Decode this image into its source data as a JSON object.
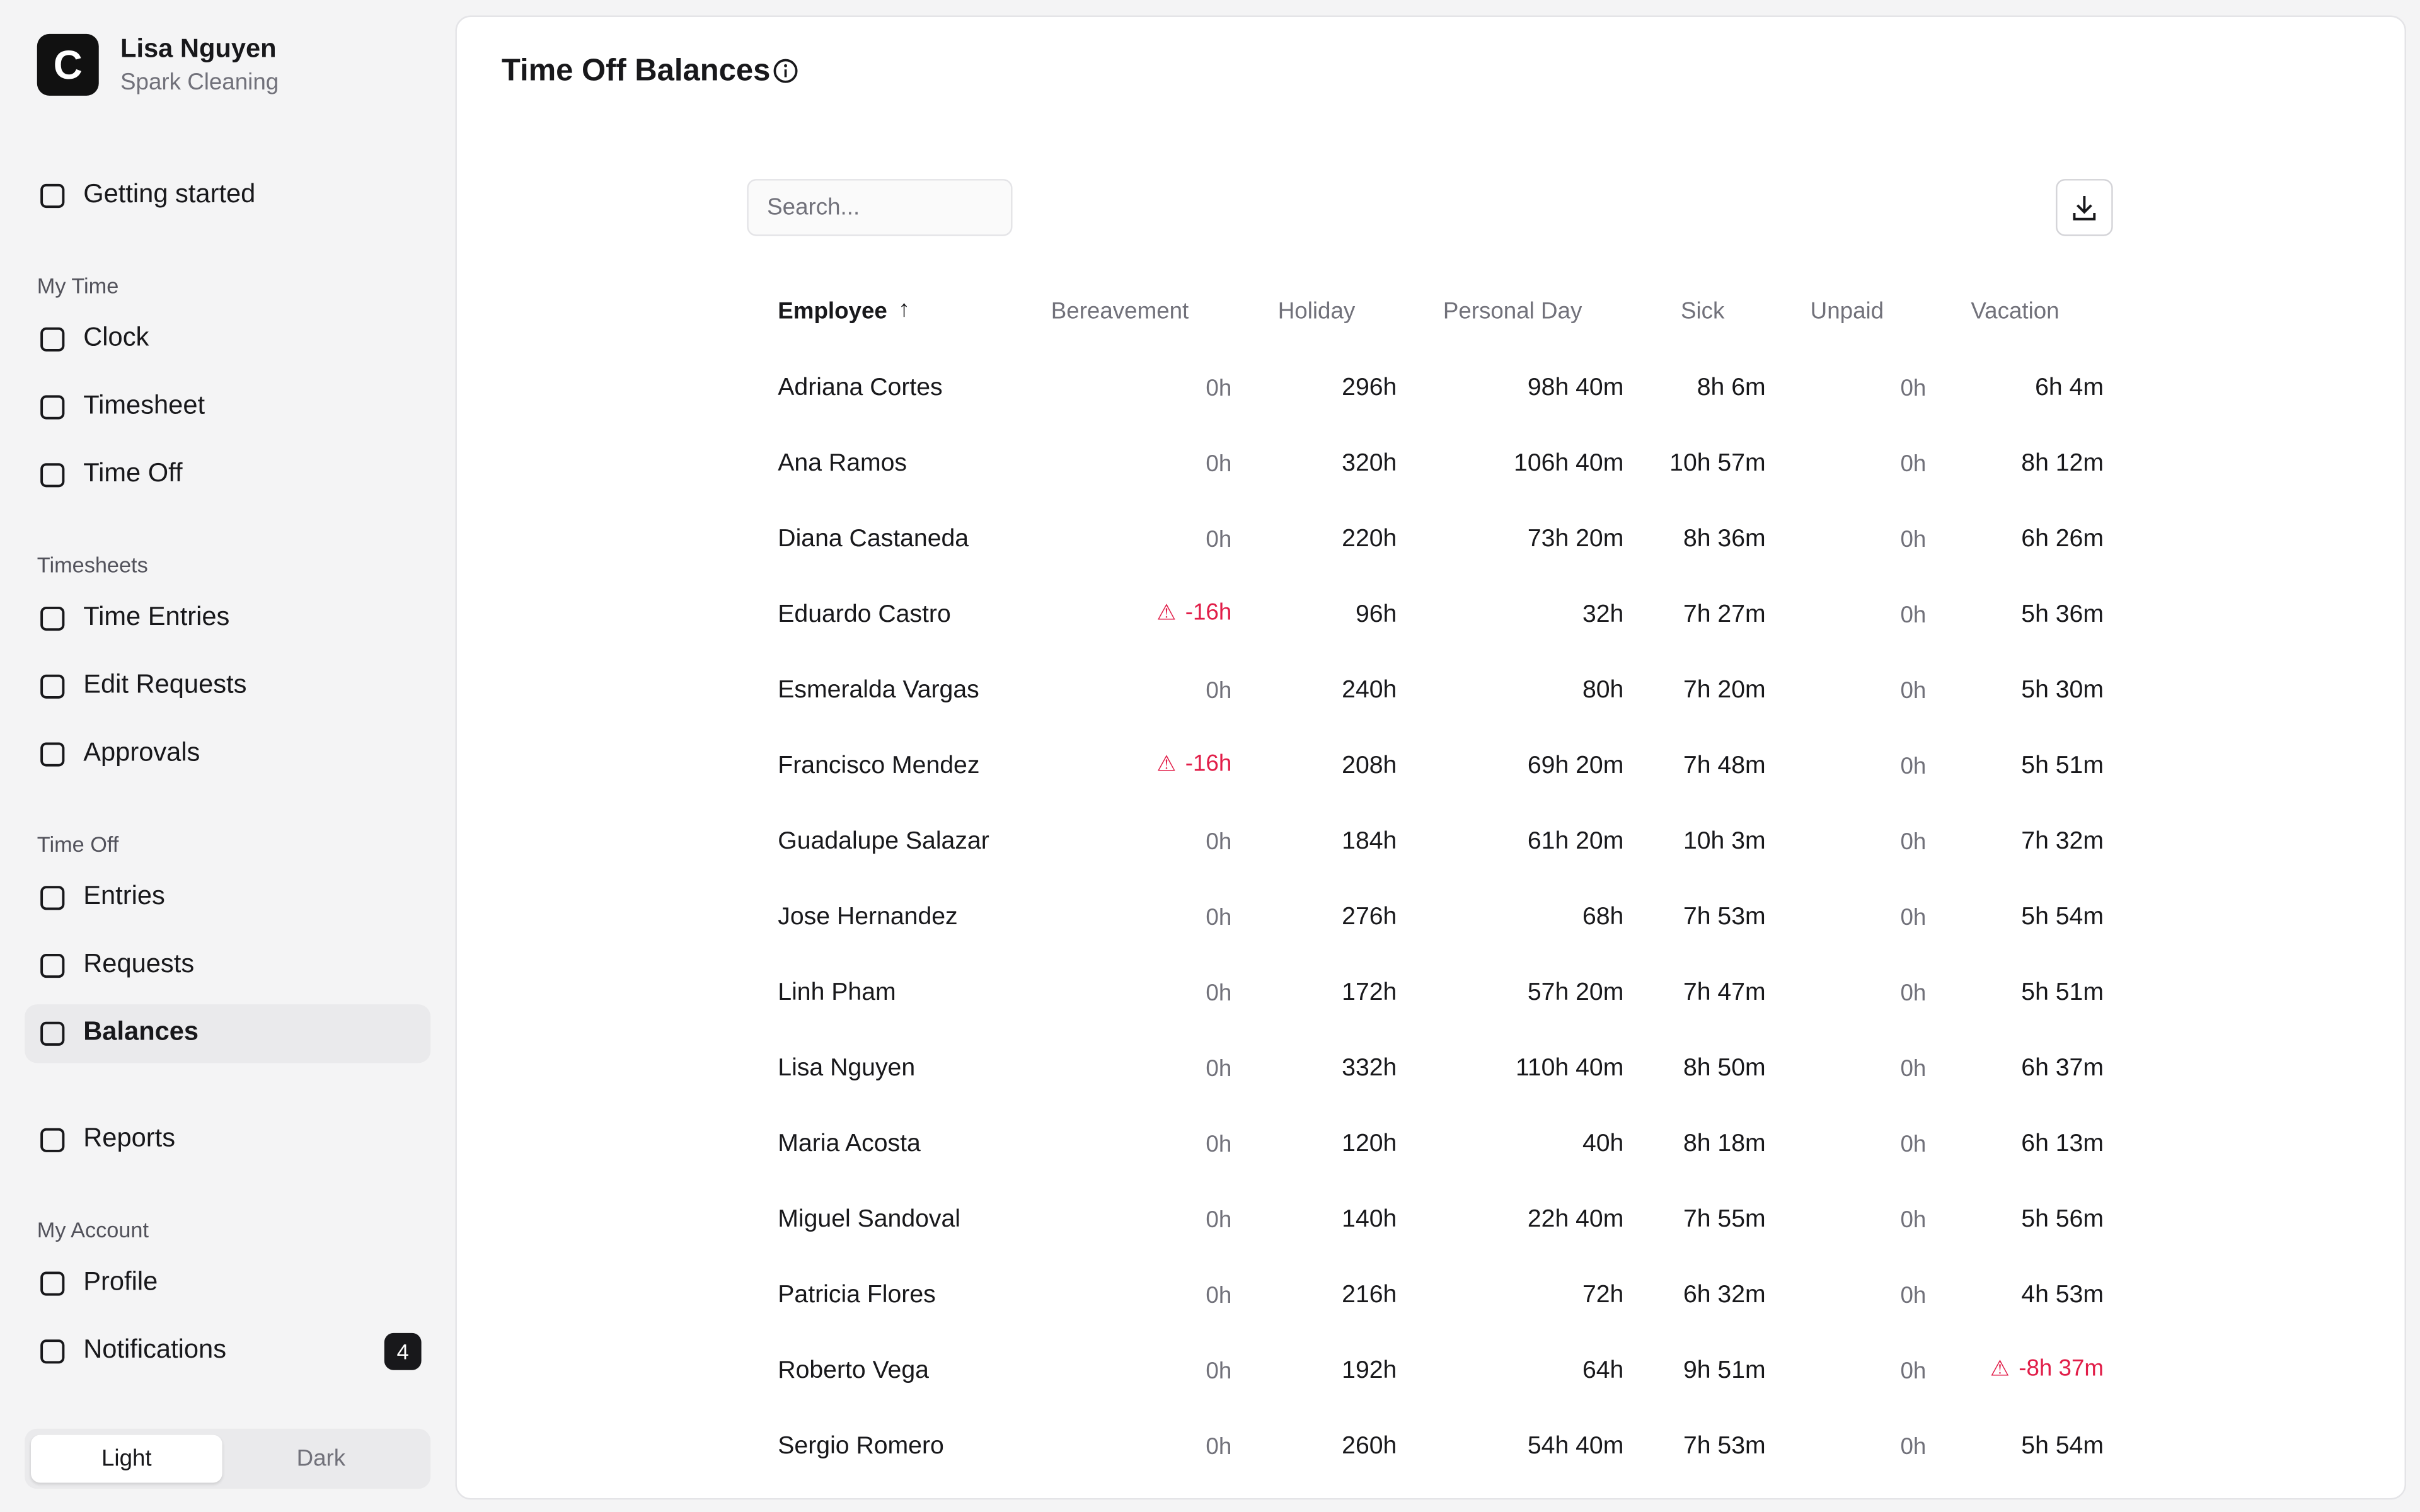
{
  "account": {
    "initial": "C",
    "name": "Lisa Nguyen",
    "company": "Spark Cleaning"
  },
  "nav": [
    {
      "items": [
        "Getting started"
      ]
    },
    {
      "heading": "My Time",
      "items": [
        "Clock",
        "Timesheet",
        "Time Off"
      ]
    },
    {
      "heading": "Timesheets",
      "items": [
        "Time Entries",
        "Edit Requests",
        "Approvals"
      ]
    },
    {
      "heading": "Time Off",
      "items": [
        "Entries",
        "Requests",
        "Balances"
      ]
    },
    {
      "items": [
        "Reports"
      ]
    },
    {
      "heading": "My Account",
      "items": [
        "Profile",
        "Notifications"
      ]
    }
  ],
  "active": "Balances",
  "notifications_badge": "4",
  "theme": {
    "options": [
      "Light",
      "Dark"
    ],
    "selected": "Light"
  },
  "page": {
    "title": "Time Off Balances",
    "search_placeholder": "Search..."
  },
  "table": {
    "sort_column": "Employee",
    "columns": [
      "Employee",
      "Bereavement",
      "Holiday",
      "Personal Day",
      "Sick",
      "Unpaid",
      "Vacation"
    ],
    "rows": [
      [
        "Adriana Cortes",
        "0h",
        "296h",
        "98h 40m",
        "8h 6m",
        "0h",
        "6h 4m"
      ],
      [
        "Ana Ramos",
        "0h",
        "320h",
        "106h 40m",
        "10h 57m",
        "0h",
        "8h 12m"
      ],
      [
        "Diana Castaneda",
        "0h",
        "220h",
        "73h 20m",
        "8h 36m",
        "0h",
        "6h 26m"
      ],
      [
        "Eduardo Castro",
        "-16h",
        "96h",
        "32h",
        "7h 27m",
        "0h",
        "5h 36m"
      ],
      [
        "Esmeralda Vargas",
        "0h",
        "240h",
        "80h",
        "7h 20m",
        "0h",
        "5h 30m"
      ],
      [
        "Francisco Mendez",
        "-16h",
        "208h",
        "69h 20m",
        "7h 48m",
        "0h",
        "5h 51m"
      ],
      [
        "Guadalupe Salazar",
        "0h",
        "184h",
        "61h 20m",
        "10h 3m",
        "0h",
        "7h 32m"
      ],
      [
        "Jose Hernandez",
        "0h",
        "276h",
        "68h",
        "7h 53m",
        "0h",
        "5h 54m"
      ],
      [
        "Linh Pham",
        "0h",
        "172h",
        "57h 20m",
        "7h 47m",
        "0h",
        "5h 51m"
      ],
      [
        "Lisa Nguyen",
        "0h",
        "332h",
        "110h 40m",
        "8h 50m",
        "0h",
        "6h 37m"
      ],
      [
        "Maria Acosta",
        "0h",
        "120h",
        "40h",
        "8h 18m",
        "0h",
        "6h 13m"
      ],
      [
        "Miguel Sandoval",
        "0h",
        "140h",
        "22h 40m",
        "7h 55m",
        "0h",
        "5h 56m"
      ],
      [
        "Patricia Flores",
        "0h",
        "216h",
        "72h",
        "6h 32m",
        "0h",
        "4h 53m"
      ],
      [
        "Roberto Vega",
        "0h",
        "192h",
        "64h",
        "9h 51m",
        "0h",
        "-8h 37m"
      ],
      [
        "Sergio Romero",
        "0h",
        "260h",
        "54h 40m",
        "7h 53m",
        "0h",
        "5h 54m"
      ]
    ]
  }
}
